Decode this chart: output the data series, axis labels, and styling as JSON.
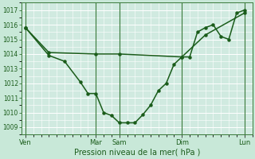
{
  "background_color": "#c8e8d8",
  "plot_bg_color": "#d0eae0",
  "grid_color": "#b0d8c8",
  "line_color": "#1a5c1a",
  "marker_color": "#1a5c1a",
  "xlabel": "Pression niveau de la mer( hPa )",
  "ylim_min": 1008.5,
  "ylim_max": 1017.5,
  "yticks": [
    1009,
    1010,
    1011,
    1012,
    1013,
    1014,
    1015,
    1016,
    1017
  ],
  "day_labels": [
    "Ven",
    "Mar",
    "Sam",
    "Dim",
    "Lun"
  ],
  "day_positions": [
    0,
    9,
    12,
    20,
    28
  ],
  "vline_positions": [
    0,
    9,
    12,
    20,
    28
  ],
  "xlim_min": -0.5,
  "xlim_max": 29,
  "curve1_x": [
    0,
    3,
    5,
    7,
    8,
    9,
    10,
    11,
    12,
    13,
    14,
    15,
    16,
    17,
    18,
    19,
    20,
    21,
    22,
    23,
    24,
    25,
    26,
    27,
    28
  ],
  "curve1_y": [
    1015.8,
    1013.9,
    1013.5,
    1012.1,
    1011.3,
    1011.3,
    1010.0,
    1009.8,
    1009.3,
    1009.3,
    1009.3,
    1009.85,
    1010.5,
    1011.5,
    1012.0,
    1013.3,
    1013.8,
    1013.8,
    1015.5,
    1015.8,
    1016.0,
    1015.2,
    1015.0,
    1016.8,
    1017.0
  ],
  "curve2_x": [
    0,
    3,
    9,
    12,
    20,
    23,
    28
  ],
  "curve2_y": [
    1015.8,
    1014.1,
    1014.0,
    1014.0,
    1013.8,
    1015.3,
    1016.8
  ]
}
